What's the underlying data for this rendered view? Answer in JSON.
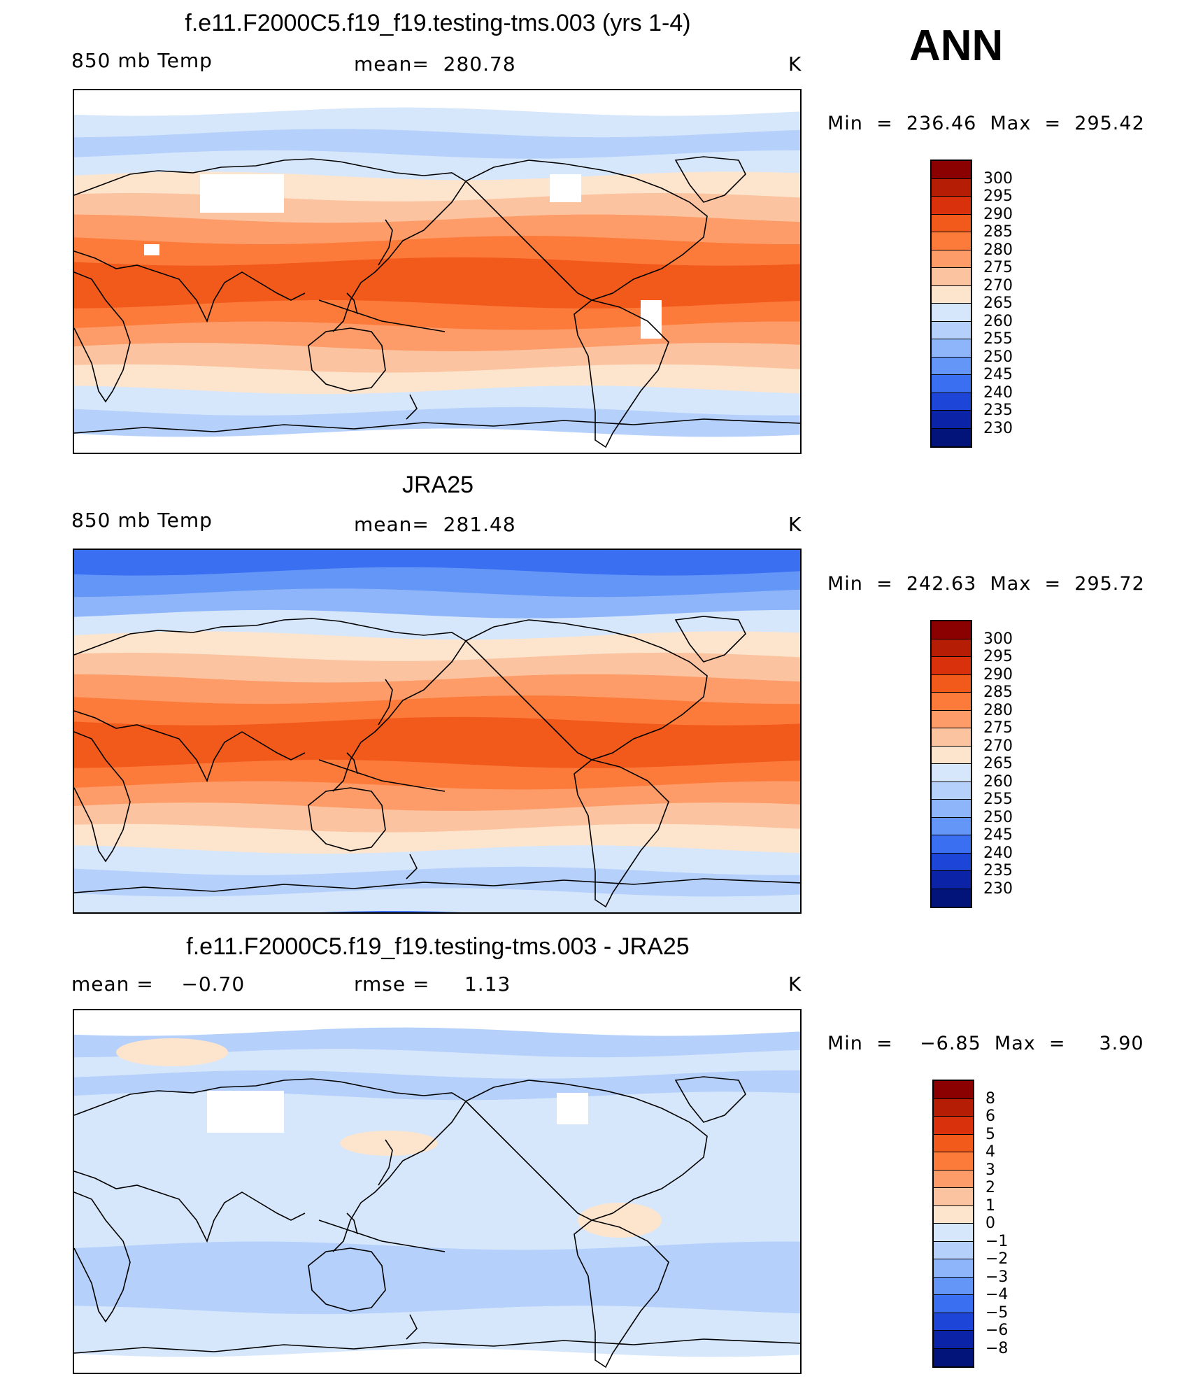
{
  "season": "ANN",
  "panels": [
    {
      "id": "model",
      "title": "f.e11.F2000C5.f19_f19.testing-tms.003 (yrs 1-4)",
      "left_label": "850 mb Temp",
      "center_label": "mean=  280.78",
      "units": "K",
      "minmax": "Min  =  236.46  Max  =  295.42",
      "colorbar": {
        "labels": [
          "300",
          "295",
          "290",
          "285",
          "280",
          "275",
          "270",
          "265",
          "260",
          "255",
          "250",
          "245",
          "240",
          "235",
          "230"
        ],
        "colors": [
          "#8b0000",
          "#b51d05",
          "#d9310b",
          "#f25a1c",
          "#fc7b3a",
          "#fd9c68",
          "#fcc3a0",
          "#fde4cc",
          "#d7e7fb",
          "#b4d0fb",
          "#8eb5fa",
          "#6496f7",
          "#3a6ff1",
          "#1d45d8",
          "#0b23a6",
          "#02137a"
        ]
      },
      "map": {
        "bands": [
          "#ffffff",
          "#d7e7fb",
          "#b4d0fb",
          "#d7e7fb",
          "#fde4cc",
          "#fcc3a0",
          "#fd9c68",
          "#fc7b3a",
          "#f25a1c",
          "#f25a1c",
          "#fc7b3a",
          "#fd9c68",
          "#fcc3a0",
          "#fde4cc",
          "#d7e7fb",
          "#b4d0fb",
          "#ffffff"
        ],
        "features": "model"
      }
    },
    {
      "id": "obs",
      "title": "JRA25",
      "left_label": "850 mb Temp",
      "center_label": "mean=  281.48",
      "units": "K",
      "minmax": "Min  =  242.63  Max  =  295.72",
      "colorbar": {
        "labels": [
          "300",
          "295",
          "290",
          "285",
          "280",
          "275",
          "270",
          "265",
          "260",
          "255",
          "250",
          "245",
          "240",
          "235",
          "230"
        ],
        "colors": [
          "#8b0000",
          "#b51d05",
          "#d9310b",
          "#f25a1c",
          "#fc7b3a",
          "#fd9c68",
          "#fcc3a0",
          "#fde4cc",
          "#d7e7fb",
          "#b4d0fb",
          "#8eb5fa",
          "#6496f7",
          "#3a6ff1",
          "#1d45d8",
          "#0b23a6",
          "#02137a"
        ]
      },
      "map": {
        "bands": [
          "#3a6ff1",
          "#6496f7",
          "#8eb5fa",
          "#d7e7fb",
          "#fde4cc",
          "#fcc3a0",
          "#fd9c68",
          "#fc7b3a",
          "#f25a1c",
          "#f25a1c",
          "#fc7b3a",
          "#fd9c68",
          "#fcc3a0",
          "#fde4cc",
          "#d7e7fb",
          "#b4d0fb",
          "#d7e7fb"
        ],
        "features": "obs"
      }
    },
    {
      "id": "diff",
      "title": "f.e11.F2000C5.f19_f19.testing-tms.003 - JRA25",
      "left_label": "mean =    −0.70",
      "center_label": "rmse =     1.13",
      "units": "K",
      "minmax": "Min  =    −6.85  Max  =     3.90",
      "colorbar": {
        "labels": [
          "8",
          "6",
          "5",
          "4",
          "3",
          "2",
          "1",
          "0",
          "−1",
          "−2",
          "−3",
          "−4",
          "−5",
          "−6",
          "−8"
        ],
        "colors": [
          "#8b0000",
          "#b51d05",
          "#d9310b",
          "#f25a1c",
          "#fc7b3a",
          "#fd9c68",
          "#fcc3a0",
          "#fde4cc",
          "#d7e7fb",
          "#b4d0fb",
          "#8eb5fa",
          "#6496f7",
          "#3a6ff1",
          "#1d45d8",
          "#0b23a6",
          "#02137a"
        ]
      },
      "map": {
        "bands": [
          "#ffffff",
          "#b4d0fb",
          "#d7e7fb",
          "#b4d0fb",
          "#d7e7fb",
          "#d7e7fb",
          "#d7e7fb",
          "#d7e7fb",
          "#d7e7fb",
          "#d7e7fb",
          "#d7e7fb",
          "#b4d0fb",
          "#b4d0fb",
          "#b4d0fb",
          "#d7e7fb",
          "#d7e7fb",
          "#ffffff"
        ],
        "features": "diff"
      }
    }
  ]
}
